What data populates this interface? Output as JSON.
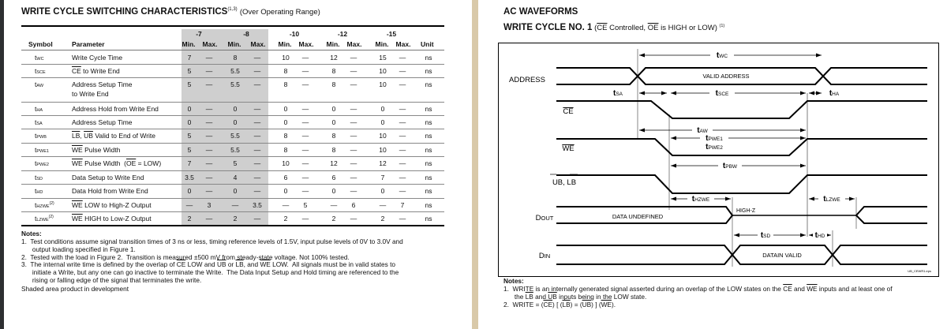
{
  "left": {
    "title": "WRITE CYCLE SWITCHING CHARACTERISTICS",
    "title_sup": "(1,3)",
    "title_suffix": "(Over Operating Range)",
    "headers": {
      "symbol": "Symbol",
      "parameter": "Parameter",
      "unit": "Unit",
      "groups": [
        "-7",
        "-8",
        "-10",
        "-12",
        "-15"
      ],
      "min": "Min.",
      "max": "Max."
    },
    "rows": [
      {
        "sym": "t",
        "sub": "WC",
        "sup": "",
        "param": [
          {
            "t": "Write Cycle Time",
            "o": false
          }
        ],
        "param2": "",
        "vals": [
          "7",
          "—",
          "8",
          "—",
          "10",
          "—",
          "12",
          "—",
          "15",
          "—"
        ],
        "unit": "ns"
      },
      {
        "sym": "t",
        "sub": "SCE",
        "sup": "",
        "param": [
          {
            "t": "CE",
            "o": true
          },
          {
            "t": " to Write End",
            "o": false
          }
        ],
        "param2": "",
        "vals": [
          "5",
          "—",
          "5.5",
          "—",
          "8",
          "—",
          "8",
          "—",
          "10",
          "—"
        ],
        "unit": "ns"
      },
      {
        "sym": "t",
        "sub": "AW",
        "sup": "",
        "param": [
          {
            "t": "Address Setup Time",
            "o": false
          }
        ],
        "param2": "to Write End",
        "vals": [
          "5",
          "—",
          "5.5",
          "—",
          "8",
          "—",
          "8",
          "—",
          "10",
          "—"
        ],
        "unit": "ns"
      },
      {
        "sym": "t",
        "sub": "HA",
        "sup": "",
        "param": [
          {
            "t": "Address Hold from Write End",
            "o": false
          }
        ],
        "param2": "",
        "vals": [
          "0",
          "—",
          "0",
          "—",
          "0",
          "—",
          "0",
          "—",
          "0",
          "—"
        ],
        "unit": "ns"
      },
      {
        "sym": "t",
        "sub": "SA",
        "sup": "",
        "param": [
          {
            "t": "Address Setup Time",
            "o": false
          }
        ],
        "param2": "",
        "vals": [
          "0",
          "—",
          "0",
          "—",
          "0",
          "—",
          "0",
          "—",
          "0",
          "—"
        ],
        "unit": "ns"
      },
      {
        "sym": "t",
        "sub": "PWB",
        "sup": "",
        "param": [
          {
            "t": "LB",
            "o": true
          },
          {
            "t": ", ",
            "o": false
          },
          {
            "t": "UB",
            "o": true
          },
          {
            "t": " Valid to End of Write",
            "o": false
          }
        ],
        "param2": "",
        "vals": [
          "5",
          "—",
          "5.5",
          "—",
          "8",
          "—",
          "8",
          "—",
          "10",
          "—"
        ],
        "unit": "ns"
      },
      {
        "sym": "t",
        "sub": "PWE1",
        "sup": "",
        "param": [
          {
            "t": "WE",
            "o": true
          },
          {
            "t": " Pulse Width",
            "o": false
          }
        ],
        "param2": "",
        "vals": [
          "5",
          "—",
          "5.5",
          "—",
          "8",
          "—",
          "8",
          "—",
          "10",
          "—"
        ],
        "unit": "ns"
      },
      {
        "sym": "t",
        "sub": "PWE2",
        "sup": "",
        "param": [
          {
            "t": "WE",
            "o": true
          },
          {
            "t": " Pulse Width  (",
            "o": false
          },
          {
            "t": "OE",
            "o": true
          },
          {
            "t": " = LOW)",
            "o": false
          }
        ],
        "param2": "",
        "vals": [
          "7",
          "—",
          "5",
          "—",
          "10",
          "—",
          "12",
          "—",
          "12",
          "—"
        ],
        "unit": "ns"
      },
      {
        "sym": "t",
        "sub": "SD",
        "sup": "",
        "param": [
          {
            "t": "Data Setup to Write End",
            "o": false
          }
        ],
        "param2": "",
        "vals": [
          "3.5",
          "—",
          "4",
          "—",
          "6",
          "—",
          "6",
          "—",
          "7",
          "—"
        ],
        "unit": "ns"
      },
      {
        "sym": "t",
        "sub": "HD",
        "sup": "",
        "param": [
          {
            "t": "Data Hold from Write End",
            "o": false
          }
        ],
        "param2": "",
        "vals": [
          "0",
          "—",
          "0",
          "—",
          "0",
          "—",
          "0",
          "—",
          "0",
          "—"
        ],
        "unit": "ns"
      },
      {
        "sym": "t",
        "sub": "HZWE",
        "sup": "(2)",
        "param": [
          {
            "t": "WE",
            "o": true
          },
          {
            "t": " LOW to High-Z Output",
            "o": false
          }
        ],
        "param2": "",
        "vals": [
          "—",
          "3",
          "—",
          "3.5",
          "—",
          "5",
          "—",
          "6",
          "—",
          "7"
        ],
        "unit": "ns"
      },
      {
        "sym": "t",
        "sub": "LZWE",
        "sup": "(2)",
        "param": [
          {
            "t": "WE",
            "o": true
          },
          {
            "t": " HIGH to Low-Z Output",
            "o": false
          }
        ],
        "param2": "",
        "vals": [
          "2",
          "—",
          "2",
          "—",
          "2",
          "—",
          "2",
          "—",
          "2",
          "—"
        ],
        "unit": "ns"
      }
    ],
    "notes_title": "Notes:",
    "notes": [
      [
        {
          "t": "1.  Test conditions assume signal transition times of 3 ns or less, timing reference levels of 1.5V, input pulse levels of 0V to 3.0V and",
          "o": false
        }
      ],
      [
        {
          "t": "      output loading specified in Figure 1.",
          "o": false
        }
      ],
      [
        {
          "t": "2.  Tested with the load in Figure 2.  Transition is measured ±500 mV from steady-state voltage. Not 100% tested.",
          "o": false
        }
      ],
      [
        {
          "t": "3.  The internal write time is defined by the overlap of ",
          "o": false
        },
        {
          "t": "CE",
          "o": true
        },
        {
          "t": " LOW and ",
          "o": false
        },
        {
          "t": "UB",
          "o": true
        },
        {
          "t": " or ",
          "o": false
        },
        {
          "t": "LB",
          "o": true
        },
        {
          "t": ", and ",
          "o": false
        },
        {
          "t": "WE",
          "o": true
        },
        {
          "t": " LOW.  All signals must be in valid states to",
          "o": false
        }
      ],
      [
        {
          "t": "      initiate a Write, but any one can go inactive to terminate the Write.  The Data Input Setup and Hold timing are referenced to the",
          "o": false
        }
      ],
      [
        {
          "t": "      rising or falling edge of the signal that terminates the write.",
          "o": false
        }
      ],
      [
        {
          "t": "Shaded area product in development",
          "o": false
        }
      ]
    ],
    "shade_color": "#cfcfcf"
  },
  "right": {
    "heading": "AC WAVEFORMS",
    "subtitle_bold": "WRITE CYCLE NO. 1",
    "subtitle_parts": [
      {
        "t": " (",
        "o": false
      },
      {
        "t": "CE",
        "o": true
      },
      {
        "t": " Controlled, ",
        "o": false
      },
      {
        "t": "OE",
        "o": true
      },
      {
        "t": " is HIGH or LOW)",
        "o": false
      }
    ],
    "subtitle_sup": "(1)",
    "diagram": {
      "signals": {
        "address": "ADDRESS",
        "ce": "CE",
        "we": "WE",
        "ublb": "UB, LB",
        "dout_main": "D",
        "dout_sub": "OUT",
        "din_main": "D",
        "din_sub": "IN"
      },
      "labels": {
        "valid_address": "VALID ADDRESS",
        "data_undefined": "DATA UNDEFINED",
        "high_z": "HIGH-Z",
        "datain_valid": "DATAIN VALID",
        "file": "UB_CEWR1.eps"
      },
      "timings": {
        "twc": "WC",
        "tsa": "SA",
        "tsce": "SCE",
        "tha": "HA",
        "taw": "AW",
        "tpwe1": "PWE1",
        "tpwe2": "PWE2",
        "tpbw": "PBW",
        "thzwe": "HZWE",
        "tlzwe": "LZWE",
        "tsd": "SD",
        "thd": "HD"
      },
      "t": "t"
    },
    "notes_title": "Notes:",
    "notes": [
      [
        {
          "t": "1.  WRITE is an internally generated signal asserted during an overlap of the LOW states on the ",
          "o": false
        },
        {
          "t": "CE",
          "o": true
        },
        {
          "t": " and ",
          "o": false
        },
        {
          "t": "WE",
          "o": true
        },
        {
          "t": " inputs and at least one of",
          "o": false
        }
      ],
      [
        {
          "t": "      the ",
          "o": false
        },
        {
          "t": "LB",
          "o": true
        },
        {
          "t": " and ",
          "o": false
        },
        {
          "t": "UB",
          "o": true
        },
        {
          "t": " inputs being in the LOW state.",
          "o": false
        }
      ],
      [
        {
          "t": "2.  WRITE = (",
          "o": false
        },
        {
          "t": "CE",
          "o": true
        },
        {
          "t": ") [ (",
          "o": false
        },
        {
          "t": "LB",
          "o": true
        },
        {
          "t": ") = (",
          "o": false
        },
        {
          "t": "UB",
          "o": true
        },
        {
          "t": ") ] (",
          "o": false
        },
        {
          "t": "WE",
          "o": true
        },
        {
          "t": ").",
          "o": false
        }
      ]
    ]
  }
}
